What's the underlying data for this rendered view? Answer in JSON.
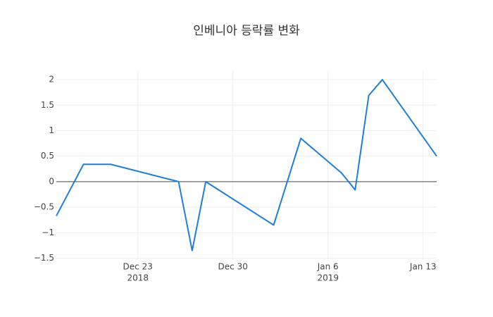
{
  "chart_data": {
    "type": "line",
    "title": "인베니아 등락률 변화",
    "x": [
      "2018-12-17",
      "2018-12-19",
      "2018-12-21",
      "2018-12-26",
      "2018-12-27",
      "2018-12-28",
      "2019-01-02",
      "2019-01-04",
      "2019-01-07",
      "2019-01-08",
      "2019-01-09",
      "2019-01-10",
      "2019-01-14"
    ],
    "series": [
      {
        "name": "인베니아",
        "color": "#1f7ed8",
        "values": [
          -0.67,
          0.34,
          0.34,
          0,
          -1.35,
          0,
          -0.85,
          0.85,
          0.17,
          -0.16,
          1.69,
          2.0,
          0.5
        ]
      }
    ],
    "xlim": [
      "2018-12-17",
      "2019-01-14"
    ],
    "xticks": [
      {
        "value": "2018-12-23",
        "label": [
          "Dec 23",
          "2018"
        ]
      },
      {
        "value": "2018-12-30",
        "label": [
          "Dec 30"
        ]
      },
      {
        "value": "2019-01-06",
        "label": [
          "Jan 6",
          "2019"
        ]
      },
      {
        "value": "2019-01-13",
        "label": [
          "Jan 13"
        ]
      }
    ],
    "ylim": [
      -1.52,
      2.18
    ],
    "yticks": [
      {
        "value": -1.5,
        "label": "−1.5"
      },
      {
        "value": -1,
        "label": "−1"
      },
      {
        "value": -0.5,
        "label": "−0.5"
      },
      0,
      0.5,
      1,
      1.5,
      2
    ],
    "grid": true,
    "zeroline": true
  }
}
